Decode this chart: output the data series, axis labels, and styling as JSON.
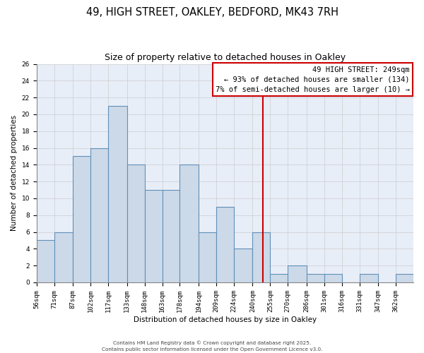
{
  "title": "49, HIGH STREET, OAKLEY, BEDFORD, MK43 7RH",
  "subtitle": "Size of property relative to detached houses in Oakley",
  "xlabel": "Distribution of detached houses by size in Oakley",
  "ylabel": "Number of detached properties",
  "bin_labels": [
    "56sqm",
    "71sqm",
    "87sqm",
    "102sqm",
    "117sqm",
    "133sqm",
    "148sqm",
    "163sqm",
    "178sqm",
    "194sqm",
    "209sqm",
    "224sqm",
    "240sqm",
    "255sqm",
    "270sqm",
    "286sqm",
    "301sqm",
    "316sqm",
    "331sqm",
    "347sqm",
    "362sqm"
  ],
  "bin_edges": [
    56,
    71,
    87,
    102,
    117,
    133,
    148,
    163,
    178,
    194,
    209,
    224,
    240,
    255,
    270,
    286,
    301,
    316,
    331,
    347,
    362,
    377
  ],
  "counts": [
    5,
    6,
    15,
    16,
    21,
    14,
    11,
    11,
    14,
    6,
    9,
    4,
    6,
    1,
    2,
    1,
    1,
    0,
    1,
    0,
    1
  ],
  "bar_facecolor": "#ccd9e8",
  "bar_edgecolor": "#6090b8",
  "grid_color": "#cccccc",
  "bg_color": "#e8eef8",
  "red_line_x": 249,
  "annotation_title": "49 HIGH STREET: 249sqm",
  "annotation_line1": "← 93% of detached houses are smaller (134)",
  "annotation_line2": "7% of semi-detached houses are larger (10) →",
  "annotation_box_color": "#ffffff",
  "annotation_border_color": "#cc0000",
  "red_line_color": "#cc0000",
  "ylim": [
    0,
    26
  ],
  "yticks": [
    0,
    2,
    4,
    6,
    8,
    10,
    12,
    14,
    16,
    18,
    20,
    22,
    24,
    26
  ],
  "footnote1": "Contains HM Land Registry data © Crown copyright and database right 2025.",
  "footnote2": "Contains public sector information licensed under the Open Government Licence v3.0.",
  "title_fontsize": 10.5,
  "subtitle_fontsize": 9,
  "axis_label_fontsize": 7.5,
  "tick_fontsize": 6.5,
  "annot_fontsize": 7.5
}
